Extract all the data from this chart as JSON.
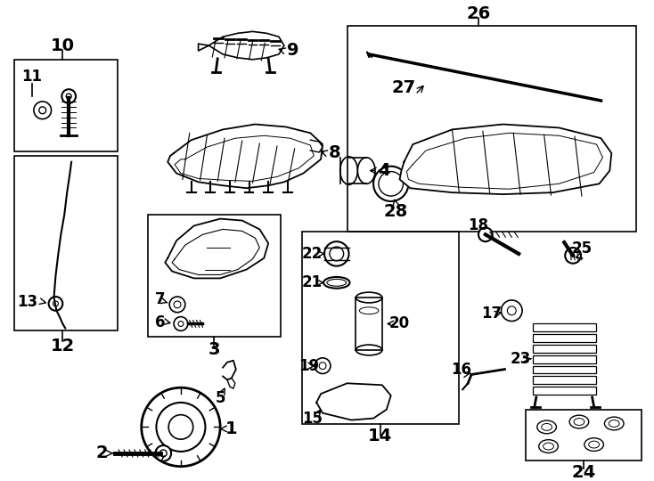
{
  "bg_color": "#ffffff",
  "line_color": "#000000",
  "figsize": [
    7.34,
    5.4
  ],
  "dpi": 100,
  "xlim": [
    0,
    734
  ],
  "ylim": [
    0,
    540
  ]
}
